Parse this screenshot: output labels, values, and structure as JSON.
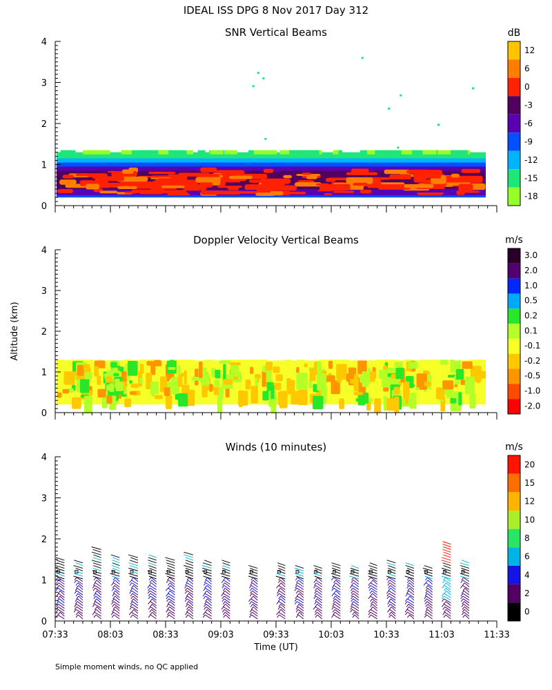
{
  "figure": {
    "title": "IDEAL ISS DPG    8 Nov 2017 Day 312",
    "y_axis_label": "Altitude (km)",
    "x_axis_label": "Time (UT)",
    "footnote": "Simple moment winds, no QC applied"
  },
  "x_ticks": [
    "07:33",
    "08:03",
    "08:33",
    "09:03",
    "09:33",
    "10:03",
    "10:33",
    "11:03",
    "11:33"
  ],
  "y_ticks": [
    "0",
    "1",
    "2",
    "3",
    "4"
  ],
  "chart_data": [
    {
      "type": "heatmap",
      "title": "SNR Vertical Beams",
      "xlabel": "Time (UT)",
      "ylabel": "Altitude (km)",
      "ylim": [
        0,
        4
      ],
      "data_range_km": [
        0.2,
        1.3
      ],
      "colorbar": {
        "unit": "dB",
        "labels": [
          "12",
          "6",
          "0",
          "-3",
          "-6",
          "-9",
          "-12",
          "-15",
          "-18"
        ],
        "colors": [
          "#ffc400",
          "#ff7d00",
          "#ff2200",
          "#520060",
          "#5a00b4",
          "#0050ff",
          "#00b4ff",
          "#1ee678",
          "#96ff28"
        ]
      },
      "layers": [
        {
          "name": "strong-echo-band",
          "value_db": 0,
          "alt_km": [
            0.3,
            0.75
          ]
        },
        {
          "name": "mid-echo-band",
          "value_db": -6,
          "alt_km": [
            0.6,
            1.1
          ]
        },
        {
          "name": "weak-echo-top",
          "value_db": -15,
          "alt_km": [
            1.0,
            1.3
          ]
        }
      ]
    },
    {
      "type": "heatmap",
      "title": "Doppler Velocity Vertical Beams",
      "xlabel": "Time (UT)",
      "ylabel": "Altitude (km)",
      "ylim": [
        0,
        4
      ],
      "data_range_km": [
        0.2,
        1.3
      ],
      "colorbar": {
        "unit": "m/s",
        "labels": [
          "3.0",
          "2.0",
          "1.0",
          "0.5",
          "0.2",
          "0.1",
          "-0.1",
          "-0.2",
          "-0.5",
          "-1.0",
          "-2.0"
        ],
        "colors": [
          "#280028",
          "#520070",
          "#0028ff",
          "#00a8ff",
          "#28e628",
          "#b4ff28",
          "#f6ff28",
          "#ffc800",
          "#ff9600",
          "#ff4b00",
          "#ff0000"
        ]
      }
    },
    {
      "type": "scatter",
      "title": "Winds (10 minutes)",
      "xlabel": "Time (UT)",
      "ylabel": "Altitude (km)",
      "ylim": [
        0,
        4
      ],
      "colorbar": {
        "unit": "m/s",
        "labels": [
          "20",
          "15",
          "12",
          "10",
          "8",
          "6",
          "4",
          "2",
          "0"
        ],
        "colors": [
          "#ff1400",
          "#ff6e00",
          "#ffb400",
          "#aaf028",
          "#28e664",
          "#00b4e6",
          "#1414e6",
          "#520064",
          "#000000"
        ]
      },
      "profile_times": [
        "07:38",
        "07:48",
        "07:58",
        "08:08",
        "08:18",
        "08:28",
        "08:38",
        "08:48",
        "08:58",
        "09:08",
        "09:23",
        "09:38",
        "09:48",
        "09:58",
        "10:08",
        "10:18",
        "10:28",
        "10:38",
        "10:48",
        "10:58",
        "11:08",
        "11:18"
      ],
      "profile_top_km": [
        1.45,
        1.4,
        1.7,
        1.5,
        1.55,
        1.5,
        1.45,
        1.6,
        1.4,
        1.4,
        1.3,
        1.35,
        1.3,
        1.3,
        1.35,
        1.3,
        1.35,
        1.4,
        1.35,
        1.3,
        1.85,
        1.4
      ]
    }
  ]
}
